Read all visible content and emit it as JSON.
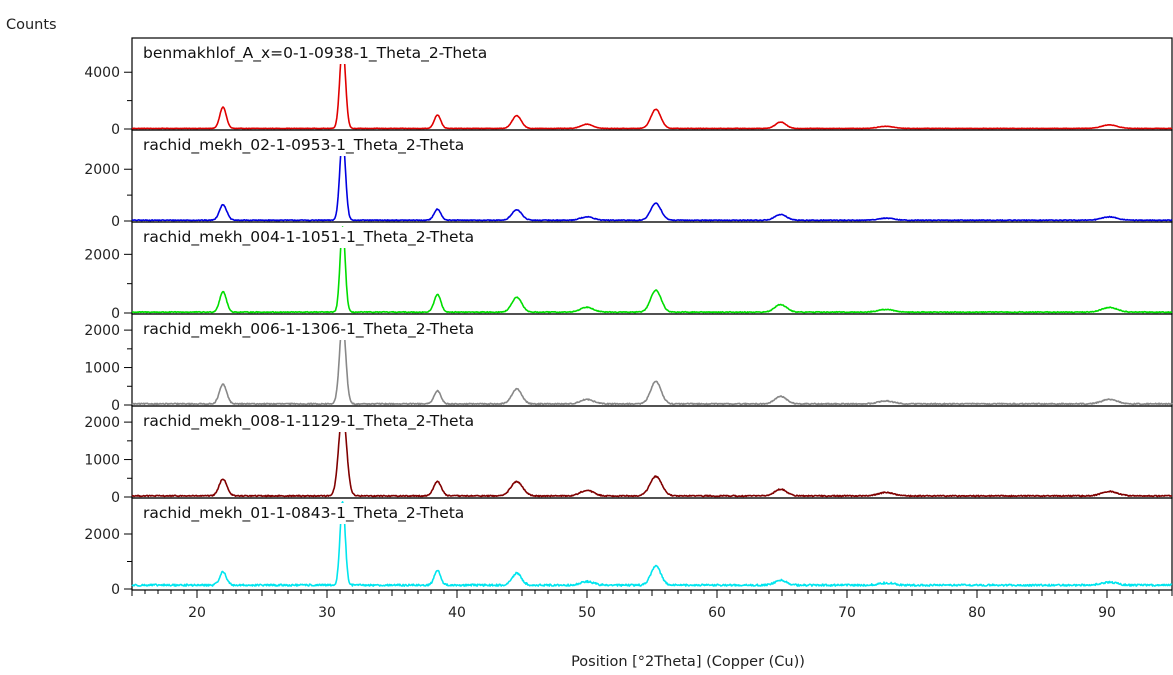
{
  "chart_data": {
    "type": "line",
    "y_axis_title": "Counts",
    "x_axis_title": "Position [°2Theta] (Copper (Cu))",
    "xlim": [
      15,
      95
    ],
    "x_ticks": [
      20,
      30,
      40,
      50,
      60,
      70,
      80,
      90
    ],
    "panels": [
      {
        "name": "benmakhlof_A_x=0-1-0938-1_Theta_2-Theta",
        "color": "#e00000",
        "ylim": [
          0,
          6200
        ],
        "y_ticks": [
          0,
          4000
        ],
        "y_minor_ticks": [
          2000
        ],
        "baseline": 40,
        "noise": 15,
        "peaks": [
          [
            22.0,
            1500,
            0.25
          ],
          [
            31.2,
            5900,
            0.22
          ],
          [
            38.5,
            950,
            0.25
          ],
          [
            44.6,
            900,
            0.35
          ],
          [
            50.0,
            300,
            0.45
          ],
          [
            55.3,
            1350,
            0.38
          ],
          [
            64.9,
            450,
            0.4
          ],
          [
            73.0,
            150,
            0.6
          ],
          [
            90.2,
            250,
            0.6
          ]
        ]
      },
      {
        "name": "rachid_mekh_02-1-0953-1_Theta_2-Theta",
        "color": "#0000e0",
        "ylim": [
          0,
          3400
        ],
        "y_ticks": [
          0,
          2000
        ],
        "y_minor_ticks": [
          1000
        ],
        "baseline": 30,
        "noise": 15,
        "peaks": [
          [
            22.0,
            600,
            0.28
          ],
          [
            31.2,
            3200,
            0.22
          ],
          [
            38.5,
            430,
            0.26
          ],
          [
            44.6,
            400,
            0.38
          ],
          [
            50.0,
            130,
            0.5
          ],
          [
            55.3,
            650,
            0.4
          ],
          [
            64.9,
            220,
            0.45
          ],
          [
            73.0,
            80,
            0.6
          ],
          [
            90.2,
            130,
            0.6
          ]
        ]
      },
      {
        "name": "rachid_mekh_004-1-1051-1_Theta_2-Theta",
        "color": "#00dd00",
        "ylim": [
          0,
          3000
        ],
        "y_ticks": [
          0,
          2000
        ],
        "y_minor_ticks": [
          1000
        ],
        "baseline": 30,
        "noise": 15,
        "peaks": [
          [
            22.0,
            700,
            0.26
          ],
          [
            31.2,
            2900,
            0.2
          ],
          [
            38.5,
            600,
            0.26
          ],
          [
            44.6,
            500,
            0.38
          ],
          [
            50.0,
            170,
            0.5
          ],
          [
            55.3,
            750,
            0.4
          ],
          [
            64.9,
            260,
            0.45
          ],
          [
            73.0,
            90,
            0.6
          ],
          [
            90.2,
            160,
            0.6
          ]
        ]
      },
      {
        "name": "rachid_mekh_006-1-1306-1_Theta_2-Theta",
        "color": "#888888",
        "ylim": [
          0,
          2350
        ],
        "y_ticks": [
          0,
          1000,
          2000
        ],
        "y_minor_ticks": [
          500,
          1500
        ],
        "baseline": 30,
        "noise": 15,
        "peaks": [
          [
            22.0,
            520,
            0.28
          ],
          [
            31.2,
            2200,
            0.24
          ],
          [
            38.5,
            350,
            0.26
          ],
          [
            44.6,
            400,
            0.38
          ],
          [
            50.0,
            120,
            0.5
          ],
          [
            55.3,
            600,
            0.4
          ],
          [
            64.9,
            200,
            0.45
          ],
          [
            73.0,
            80,
            0.6
          ],
          [
            90.2,
            120,
            0.6
          ]
        ]
      },
      {
        "name": "rachid_mekh_008-1-1129-1_Theta_2-Theta",
        "color": "#800000",
        "ylim": [
          0,
          2350
        ],
        "y_ticks": [
          0,
          1000,
          2000
        ],
        "y_minor_ticks": [
          500,
          1500
        ],
        "baseline": 30,
        "noise": 15,
        "peaks": [
          [
            22.0,
            450,
            0.3
          ],
          [
            31.2,
            2250,
            0.3
          ],
          [
            38.5,
            380,
            0.3
          ],
          [
            44.6,
            380,
            0.45
          ],
          [
            50.0,
            150,
            0.5
          ],
          [
            55.3,
            520,
            0.45
          ],
          [
            64.9,
            180,
            0.45
          ],
          [
            73.0,
            90,
            0.6
          ],
          [
            90.2,
            120,
            0.6
          ]
        ]
      },
      {
        "name": "rachid_mekh_01-1-0843-1_Theta_2-Theta",
        "color": "#00e5ee",
        "ylim": [
          0,
          3200
        ],
        "y_ticks": [
          0,
          2000
        ],
        "y_minor_ticks": [
          1000
        ],
        "baseline": 140,
        "noise": 35,
        "peaks": [
          [
            22.0,
            480,
            0.26
          ],
          [
            31.2,
            3050,
            0.2
          ],
          [
            38.5,
            550,
            0.24
          ],
          [
            44.6,
            430,
            0.36
          ],
          [
            50.0,
            130,
            0.5
          ],
          [
            55.3,
            700,
            0.38
          ],
          [
            64.9,
            180,
            0.45
          ],
          [
            73.0,
            80,
            0.6
          ],
          [
            90.2,
            110,
            0.6
          ]
        ]
      }
    ]
  }
}
